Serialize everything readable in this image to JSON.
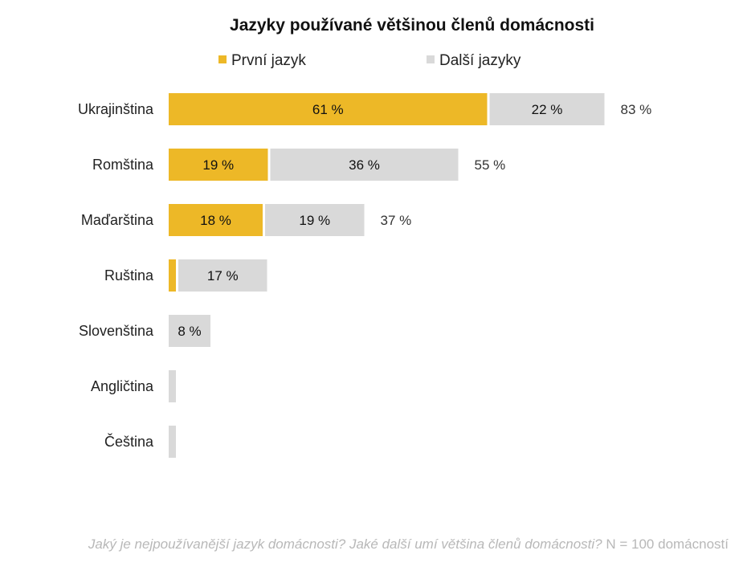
{
  "chart_data": {
    "type": "bar",
    "orientation": "horizontal",
    "stacked": true,
    "title": "Jazyky používané většinou členů domácnosti",
    "legend_position": "top",
    "categories": [
      "Ukrajinština",
      "Romština",
      "Maďarština",
      "Ruština",
      "Slovenština",
      "Angličtina",
      "Čeština"
    ],
    "series": [
      {
        "name": "První jazyk",
        "color": "#EDB827",
        "values": [
          61,
          19,
          18,
          1,
          0,
          0,
          0
        ],
        "labels": [
          "61 %",
          "19 %",
          "18 %",
          "",
          "",
          "",
          ""
        ]
      },
      {
        "name": "Další jazyky",
        "color": "#D9D9D9",
        "values": [
          22,
          36,
          19,
          17,
          8,
          1,
          1
        ],
        "labels": [
          "22 %",
          "36 %",
          "19 %",
          "17 %",
          "8 %",
          "",
          ""
        ]
      }
    ],
    "totals": [
      "83 %",
      "55 %",
      "37 %",
      "",
      "",
      "",
      ""
    ],
    "xlim": [
      0,
      83
    ],
    "grid": false
  },
  "footnote": {
    "question": "Jaký je nejpoužívanější jazyk domácnosti? Jaké další umí většina členů domácnosti?",
    "sample": "N = 100 domácností"
  }
}
